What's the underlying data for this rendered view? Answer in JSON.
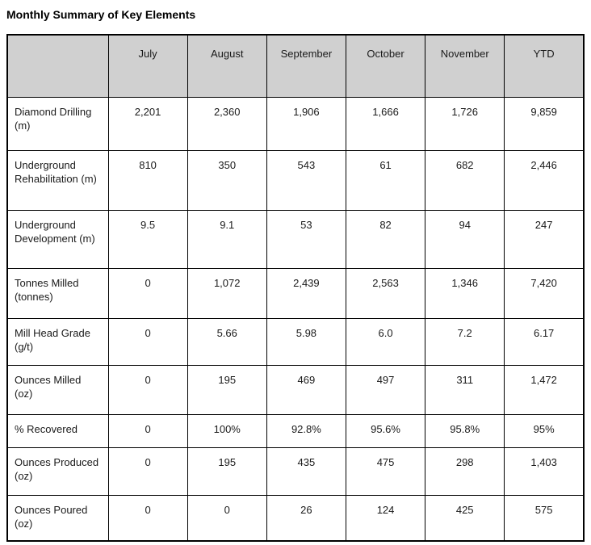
{
  "page": {
    "title": "Monthly Summary of Key Elements"
  },
  "colors": {
    "header_bg": "#d0d0d0",
    "border": "#000000",
    "text": "#1a1a1a"
  },
  "table": {
    "columns": [
      "",
      "July",
      "August",
      "September",
      "October",
      "November",
      "YTD"
    ],
    "rows": [
      {
        "label": "Diamond Drilling (m)",
        "values": [
          "2,201",
          "2,360",
          "1,906",
          "1,666",
          "1,726",
          "9,859"
        ]
      },
      {
        "label": "Underground Rehabilitation (m)",
        "values": [
          "810",
          "350",
          "543",
          "61",
          "682",
          "2,446"
        ]
      },
      {
        "label": "Underground Development (m)",
        "values": [
          "9.5",
          "9.1",
          "53",
          "82",
          "94",
          "247"
        ]
      },
      {
        "label": "Tonnes Milled (tonnes)",
        "values": [
          "0",
          "1,072",
          "2,439",
          "2,563",
          "1,346",
          "7,420"
        ]
      },
      {
        "label": "Mill Head Grade (g/t)",
        "values": [
          "0",
          "5.66",
          "5.98",
          "6.0",
          "7.2",
          "6.17"
        ]
      },
      {
        "label": "Ounces Milled (oz)",
        "values": [
          "0",
          "195",
          "469",
          "497",
          "311",
          "1,472"
        ]
      },
      {
        "label": "% Recovered",
        "values": [
          "0",
          "100%",
          "92.8%",
          "95.6%",
          "95.8%",
          "95%"
        ]
      },
      {
        "label": "Ounces Produced (oz)",
        "values": [
          "0",
          "195",
          "435",
          "475",
          "298",
          "1,403"
        ]
      },
      {
        "label": "Ounces Poured (oz)",
        "values": [
          "0",
          "0",
          "26",
          "124",
          "425",
          "575"
        ]
      }
    ]
  }
}
